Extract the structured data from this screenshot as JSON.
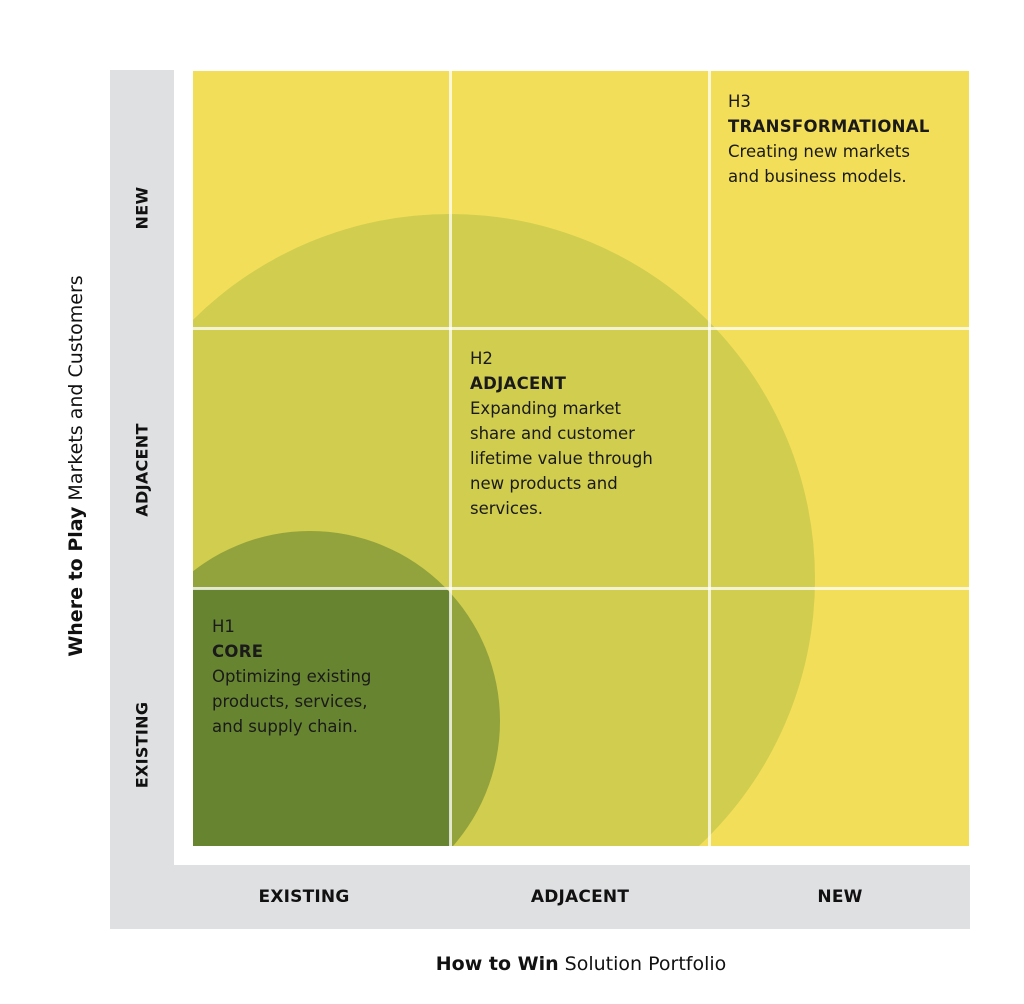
{
  "x_axis": {
    "title_bold": "How to Win",
    "title_rest": "Solution Portfolio",
    "columns": [
      "EXISTING",
      "ADJACENT",
      "NEW"
    ]
  },
  "y_axis": {
    "title_bold": "Where to Play",
    "title_rest": "Markets and Customers",
    "rows": [
      "NEW",
      "ADJACENT",
      "EXISTING"
    ]
  },
  "horizons": [
    {
      "code": "H1",
      "name": "CORE",
      "description": "Optimizing existing\nproducts, services,\nand supply chain."
    },
    {
      "code": "H2",
      "name": "ADJACENT",
      "description": "Expanding market\nshare and customer\nlifetime value through\nnew products and\nservices."
    },
    {
      "code": "H3",
      "name": "TRANSFORMATIONAL",
      "description": "Creating new markets\nand business models."
    }
  ],
  "colors": {
    "band": "#dfe0e2",
    "matrix_base": "#f2de58",
    "h2_circle": "#b4c048",
    "h1_circle": "#5f7f2e",
    "grid_line": "#ffffff"
  }
}
